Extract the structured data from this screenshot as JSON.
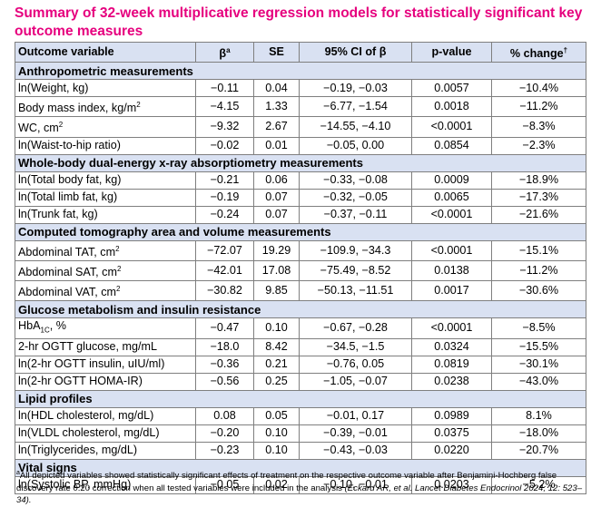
{
  "title": "Summary  of 32-week multiplicative regression models for statistically significant key outcome measures",
  "header": {
    "var": "Outcome variable",
    "beta": "β",
    "beta_sup": "a",
    "se": "SE",
    "ci": "95% CI of β",
    "p": "p-value",
    "change": "% change",
    "change_sup": "†"
  },
  "sections": [
    {
      "title": "Anthropometric measurements",
      "rows": [
        {
          "var": "ln(Weight, kg)",
          "beta": "−0.11",
          "se": "0.04",
          "ci": "−0.19, −0.03",
          "p": "0.0057",
          "change": "−10.4%"
        },
        {
          "var": "Body mass index, kg/m",
          "sup": "2",
          "beta": "−4.15",
          "se": "1.33",
          "ci": "−6.77, −1.54",
          "p": "0.0018",
          "change": "−11.2%"
        },
        {
          "var": "WC, cm",
          "sup": "2",
          "beta": "−9.32",
          "se": "2.67",
          "ci": "−14.55, −4.10",
          "p": "<0.0001",
          "change": "−8.3%"
        },
        {
          "var": "ln(Waist-to-hip ratio)",
          "beta": "−0.02",
          "se": "0.01",
          "ci": "−0.05, 0.00",
          "p": "0.0854",
          "change": "−2.3%"
        }
      ]
    },
    {
      "title": "Whole-body dual-energy x-ray absorptiometry measurements",
      "rows": [
        {
          "var": "ln(Total body fat, kg)",
          "beta": "−0.21",
          "se": "0.06",
          "ci": "−0.33, −0.08",
          "p": "0.0009",
          "change": "−18.9%"
        },
        {
          "var": "ln(Total limb fat, kg)",
          "beta": "−0.19",
          "se": "0.07",
          "ci": "−0.32, −0.05",
          "p": "0.0065",
          "change": "−17.3%"
        },
        {
          "var": "ln(Trunk fat, kg)",
          "beta": "−0.24",
          "se": "0.07",
          "ci": "−0.37, −0.11",
          "p": "<0.0001",
          "change": "−21.6%"
        }
      ]
    },
    {
      "title": "Computed tomography area and volume measurements",
      "rows": [
        {
          "var": "Abdominal TAT, cm",
          "sup": "2",
          "beta": "−72.07",
          "se": "19.29",
          "ci": "−109.9, −34.3",
          "p": "<0.0001",
          "change": "−15.1%"
        },
        {
          "var": "Abdominal SAT, cm",
          "sup": "2",
          "beta": "−42.01",
          "se": "17.08",
          "ci": "−75.49, −8.52",
          "p": "0.0138",
          "change": "−11.2%"
        },
        {
          "var": "Abdominal VAT, cm",
          "sup": "2",
          "beta": "−30.82",
          "se": "9.85",
          "ci": "−50.13, −11.51",
          "p": "0.0017",
          "change": "−30.6%"
        }
      ]
    },
    {
      "title": "Glucose metabolism and insulin resistance",
      "rows": [
        {
          "var": "HbA",
          "sub": "1C",
          "suffix": ", %",
          "beta": "−0.47",
          "se": "0.10",
          "ci": "−0.67, −0.28",
          "p": "<0.0001",
          "change": "−8.5%"
        },
        {
          "var": "2-hr OGTT glucose, mg/mL",
          "beta": "−18.0",
          "se": "8.42",
          "ci": "−34.5, −1.5",
          "p": "0.0324",
          "change": "−15.5%"
        },
        {
          "var": "ln(2-hr OGTT insulin, uIU/ml)",
          "beta": "−0.36",
          "se": "0.21",
          "ci": "−0.76, 0.05",
          "p": "0.0819",
          "change": "−30.1%"
        },
        {
          "var": "ln(2-hr OGTT HOMA-IR)",
          "beta": "−0.56",
          "se": "0.25",
          "ci": "−1.05, −0.07",
          "p": "0.0238",
          "change": "−43.0%"
        }
      ]
    },
    {
      "title": "Lipid profiles",
      "rows": [
        {
          "var": "ln(HDL cholesterol, mg/dL)",
          "beta": "0.08",
          "se": "0.05",
          "ci": "−0.01, 0.17",
          "p": "0.0989",
          "change": "8.1%"
        },
        {
          "var": "ln(VLDL cholesterol, mg/dL)",
          "beta": "−0.20",
          "se": "0.10",
          "ci": "−0.39, −0.01",
          "p": "0.0375",
          "change": "−18.0%"
        },
        {
          "var": "ln(Triglycerides, mg/dL)",
          "beta": "−0.23",
          "se": "0.10",
          "ci": "−0.43, −0.03",
          "p": "0.0220",
          "change": "−20.7%"
        }
      ]
    },
    {
      "title": "Vital signs",
      "rows": [
        {
          "var": "ln(Systolic BP, mmHg)",
          "beta": "−0.05",
          "se": "0.02",
          "ci": "−0.10, −0.01",
          "p": "0.0203",
          "change": "−5.2%"
        }
      ]
    }
  ],
  "footnote": {
    "mark": "a",
    "text": "All depicted variables showed statistically significant effects of treatment on the respective outcome variable after Benjamini-Hochberg false discovery rate 0.20 correction when all tested variables were included in the analysis",
    "citation": "(Eckard AR, et al. Lancet Diabetes Endocrinol 2024; 12: 523–34)."
  },
  "colors": {
    "title": "#e6007e",
    "section_bg": "#d9e1f2",
    "border": "#7f7f7f"
  }
}
